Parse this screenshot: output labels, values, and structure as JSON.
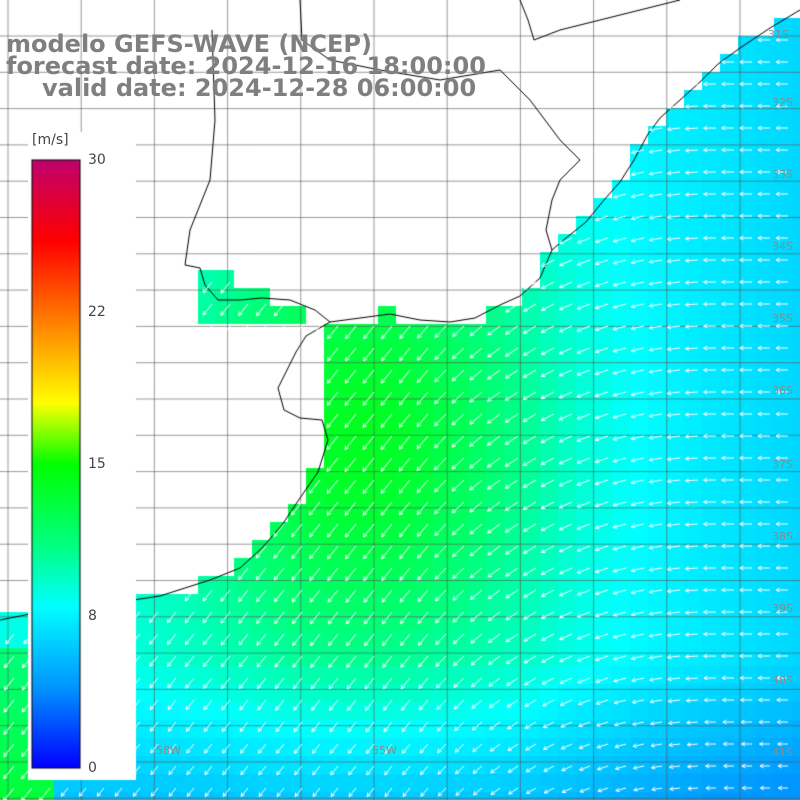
{
  "title": {
    "line1": "modelo GEFS-WAVE (NCEP)",
    "line2": "forecast date: 2024-12-16 18:00:00",
    "line3": "valid date: 2024-12-28 06:00:00"
  },
  "colorbar": {
    "unit": "[m/s]",
    "ticks": [
      "30",
      "22",
      "15",
      "8",
      "0"
    ],
    "tick_values": [
      30,
      22,
      15,
      8,
      0
    ],
    "range": [
      0,
      30
    ],
    "colors": [
      "#0000ff",
      "#00b4ff",
      "#00ffff",
      "#00ff00",
      "#ffff00",
      "#ff8000",
      "#ff0000",
      "#c0006a"
    ]
  },
  "map_labels": {
    "lat_right": [
      "31S",
      "32S",
      "33S",
      "34S",
      "35S",
      "36S",
      "37S",
      "38S",
      "39S",
      "40S",
      "41S"
    ],
    "lon_bottom": [
      "58W",
      "55W"
    ]
  },
  "field": {
    "description_key": "wind speed with direction arrows",
    "dominant_flow": "from east/northeast toward southwest",
    "max_zone_speed_ms": 14,
    "offshore_speed_ms": 9
  }
}
